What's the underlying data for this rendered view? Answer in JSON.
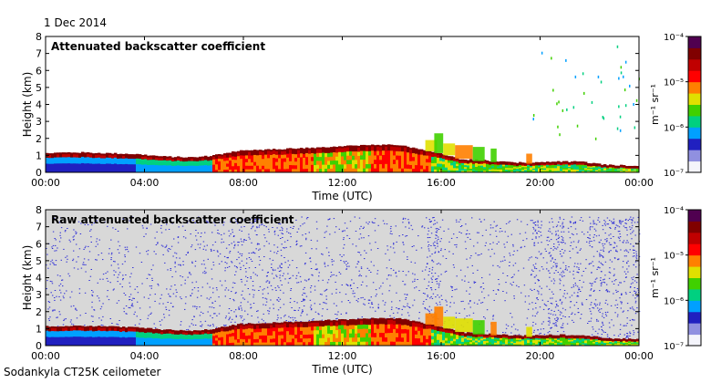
{
  "date": "1 Dec 2014",
  "footer": "Sodankyla CT25K ceilometer",
  "chart_data": [
    {
      "type": "heatmap",
      "title": "Attenuated backscatter coefficient",
      "xlabel": "Time (UTC)",
      "ylabel": "Height (km)",
      "xticks": [
        "00:00",
        "04:00",
        "08:00",
        "12:00",
        "16:00",
        "20:00",
        "00:00"
      ],
      "yticks": [
        "0",
        "1",
        "2",
        "3",
        "4",
        "5",
        "6",
        "7",
        "8"
      ],
      "ylim": [
        0,
        8
      ],
      "colorbar": {
        "units": "m⁻¹ sr⁻¹",
        "ticks": [
          "10⁻⁷",
          "10⁻⁶",
          "10⁻⁵",
          "10⁻⁴"
        ],
        "range": [
          1e-07,
          0.0001
        ],
        "scale": "log"
      },
      "noise": false
    },
    {
      "type": "heatmap",
      "title": "Raw attenuated backscatter coefficient",
      "xlabel": "Time (UTC)",
      "ylabel": "Height (km)",
      "xticks": [
        "00:00",
        "04:00",
        "08:00",
        "12:00",
        "16:00",
        "20:00",
        "00:00"
      ],
      "yticks": [
        "0",
        "1",
        "2",
        "3",
        "4",
        "5",
        "6",
        "7",
        "8"
      ],
      "ylim": [
        0,
        8
      ],
      "colorbar": {
        "units": "m⁻¹ sr⁻¹",
        "ticks": [
          "10⁻⁷",
          "10⁻⁶",
          "10⁻⁵",
          "10⁻⁴"
        ],
        "range": [
          1e-07,
          0.0001
        ],
        "scale": "log"
      },
      "noise": true
    }
  ],
  "colors": {
    "background_raw": "#d8d8d8",
    "noise": "#2b2bd6",
    "colormap": [
      "#f4f4fb",
      "#9090e0",
      "#2020c0",
      "#00a0ff",
      "#00d080",
      "#40d000",
      "#e0e000",
      "#ff8000",
      "#ff0000",
      "#c00000",
      "#800000",
      "#500050"
    ]
  }
}
